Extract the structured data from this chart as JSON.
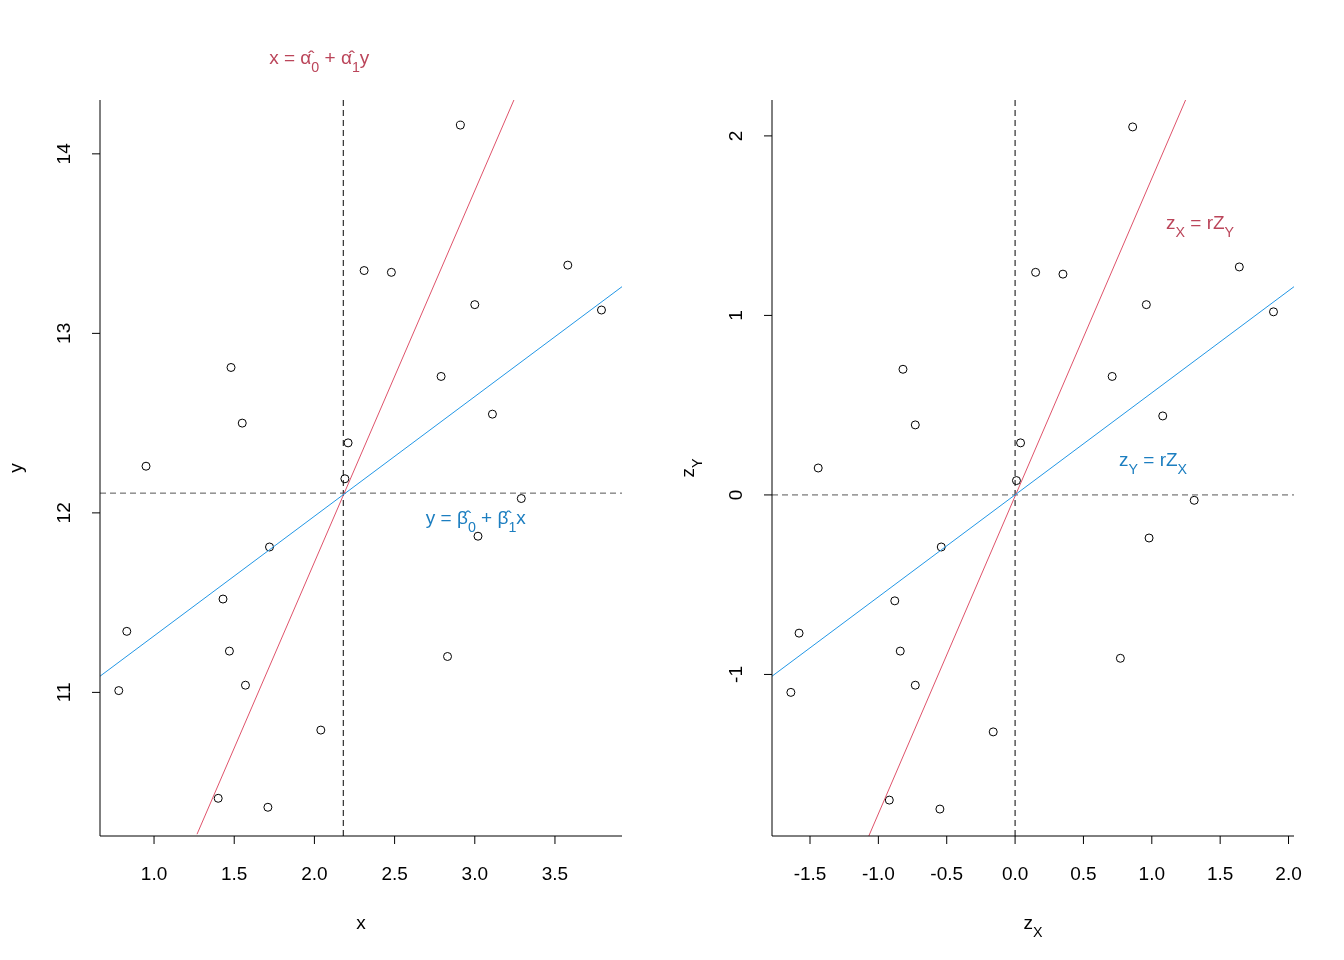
{
  "chart_data": [
    {
      "type": "scatter",
      "xlabel": "x",
      "ylabel": "y",
      "grid": false,
      "xlim": [
        0.663,
        3.918
      ],
      "ylim": [
        10.2,
        14.3
      ],
      "xticks": [
        {
          "value": 1,
          "label": "1.0"
        },
        {
          "value": 1.5,
          "label": "1.5"
        },
        {
          "value": 2,
          "label": "2.0"
        },
        {
          "value": 2.5,
          "label": "2.5"
        },
        {
          "value": 3,
          "label": "3.0"
        },
        {
          "value": 3.5,
          "label": "3.5"
        }
      ],
      "yticks": [
        11,
        12,
        13,
        14
      ],
      "series": [
        {
          "marker": "circle",
          "color": "#000000",
          "x": [
            0.78,
            0.83,
            0.95,
            1.4,
            1.43,
            1.47,
            1.48,
            1.55,
            1.57,
            1.71,
            1.72,
            2.04,
            2.19,
            2.21,
            2.31,
            2.48,
            2.79,
            2.83,
            2.91,
            3.0,
            3.02,
            3.11,
            3.29,
            3.58,
            3.79
          ],
          "values": [
            11.01,
            11.34,
            12.26,
            10.41,
            11.52,
            11.23,
            12.81,
            12.5,
            11.04,
            10.36,
            11.81,
            10.79,
            12.19,
            12.39,
            13.35,
            13.34,
            12.76,
            11.2,
            14.16,
            13.16,
            11.87,
            12.55,
            12.08,
            13.38,
            13.13
          ]
        },
        {
          "type": "line",
          "marker": "none",
          "color": "#df536b",
          "x": [
            1.268,
            3.244
          ],
          "values": [
            10.21,
            14.3
          ]
        },
        {
          "type": "line",
          "marker": "none",
          "color": "#2297e6",
          "x": [
            0.663,
            3.918
          ],
          "values": [
            11.09,
            13.26
          ]
        }
      ],
      "ref_lines": [
        {
          "axis": "x",
          "value": 2.18,
          "color": "#000000",
          "line_style": "dashed"
        },
        {
          "axis": "y",
          "value": 12.11,
          "color": "#555555",
          "line_style": "dashed"
        }
      ],
      "annotations": [
        "x = α̂$_{0}$ + α̂$_{1}$y",
        "y = β̂$_{0}$ + β̂$_{1}$x"
      ]
    },
    {
      "type": "scatter",
      "xlabel": "z$_{X}$",
      "ylabel": "z$_{Y}$",
      "grid": false,
      "xlim": [
        -1.778,
        2.04
      ],
      "ylim": [
        -1.9,
        2.2
      ],
      "xticks": [
        {
          "value": -1.5,
          "label": "-1.5"
        },
        {
          "value": -1,
          "label": "-1.0"
        },
        {
          "value": -0.5,
          "label": "-0.5"
        },
        {
          "value": 0,
          "label": "0.0"
        },
        {
          "value": 0.5,
          "label": "0.5"
        },
        {
          "value": 1,
          "label": "1.0"
        },
        {
          "value": 1.5,
          "label": "1.5"
        },
        {
          "value": 2,
          "label": "2.0"
        }
      ],
      "yticks": [
        -1,
        0,
        1,
        2
      ],
      "series": [
        {
          "marker": "circle",
          "color": "#000000",
          "x": [
            -1.64,
            -1.58,
            -1.44,
            -0.92,
            -0.88,
            -0.84,
            -0.82,
            -0.73,
            -0.73,
            -0.55,
            -0.54,
            -0.16,
            0.01,
            0.04,
            0.15,
            0.35,
            0.71,
            0.77,
            0.86,
            0.96,
            0.98,
            1.08,
            1.31,
            1.64,
            1.89
          ],
          "values": [
            -1.1,
            -0.77,
            0.15,
            -1.7,
            -0.59,
            -0.87,
            0.7,
            0.39,
            -1.06,
            -1.75,
            -0.29,
            -1.32,
            0.08,
            0.29,
            1.24,
            1.23,
            0.66,
            -0.91,
            2.05,
            1.06,
            -0.24,
            0.44,
            -0.03,
            1.27,
            1.02
          ]
        },
        {
          "type": "line",
          "marker": "none",
          "color": "#df536b",
          "x": [
            -1.07,
            1.247
          ],
          "values": [
            -1.9,
            2.2
          ]
        },
        {
          "type": "line",
          "marker": "none",
          "color": "#2297e6",
          "x": [
            -1.778,
            2.04
          ],
          "values": [
            -1.01,
            1.16
          ]
        }
      ],
      "ref_lines": [
        {
          "axis": "x",
          "value": 0,
          "color": "#000000",
          "line_style": "dashed"
        },
        {
          "axis": "y",
          "value": 0,
          "color": "#555555",
          "line_style": "dashed"
        }
      ],
      "annotations": [
        "z$_{X}$ = rZ$_{Y}$",
        "z$_{Y}$ = rZ$_{X}$"
      ]
    }
  ]
}
